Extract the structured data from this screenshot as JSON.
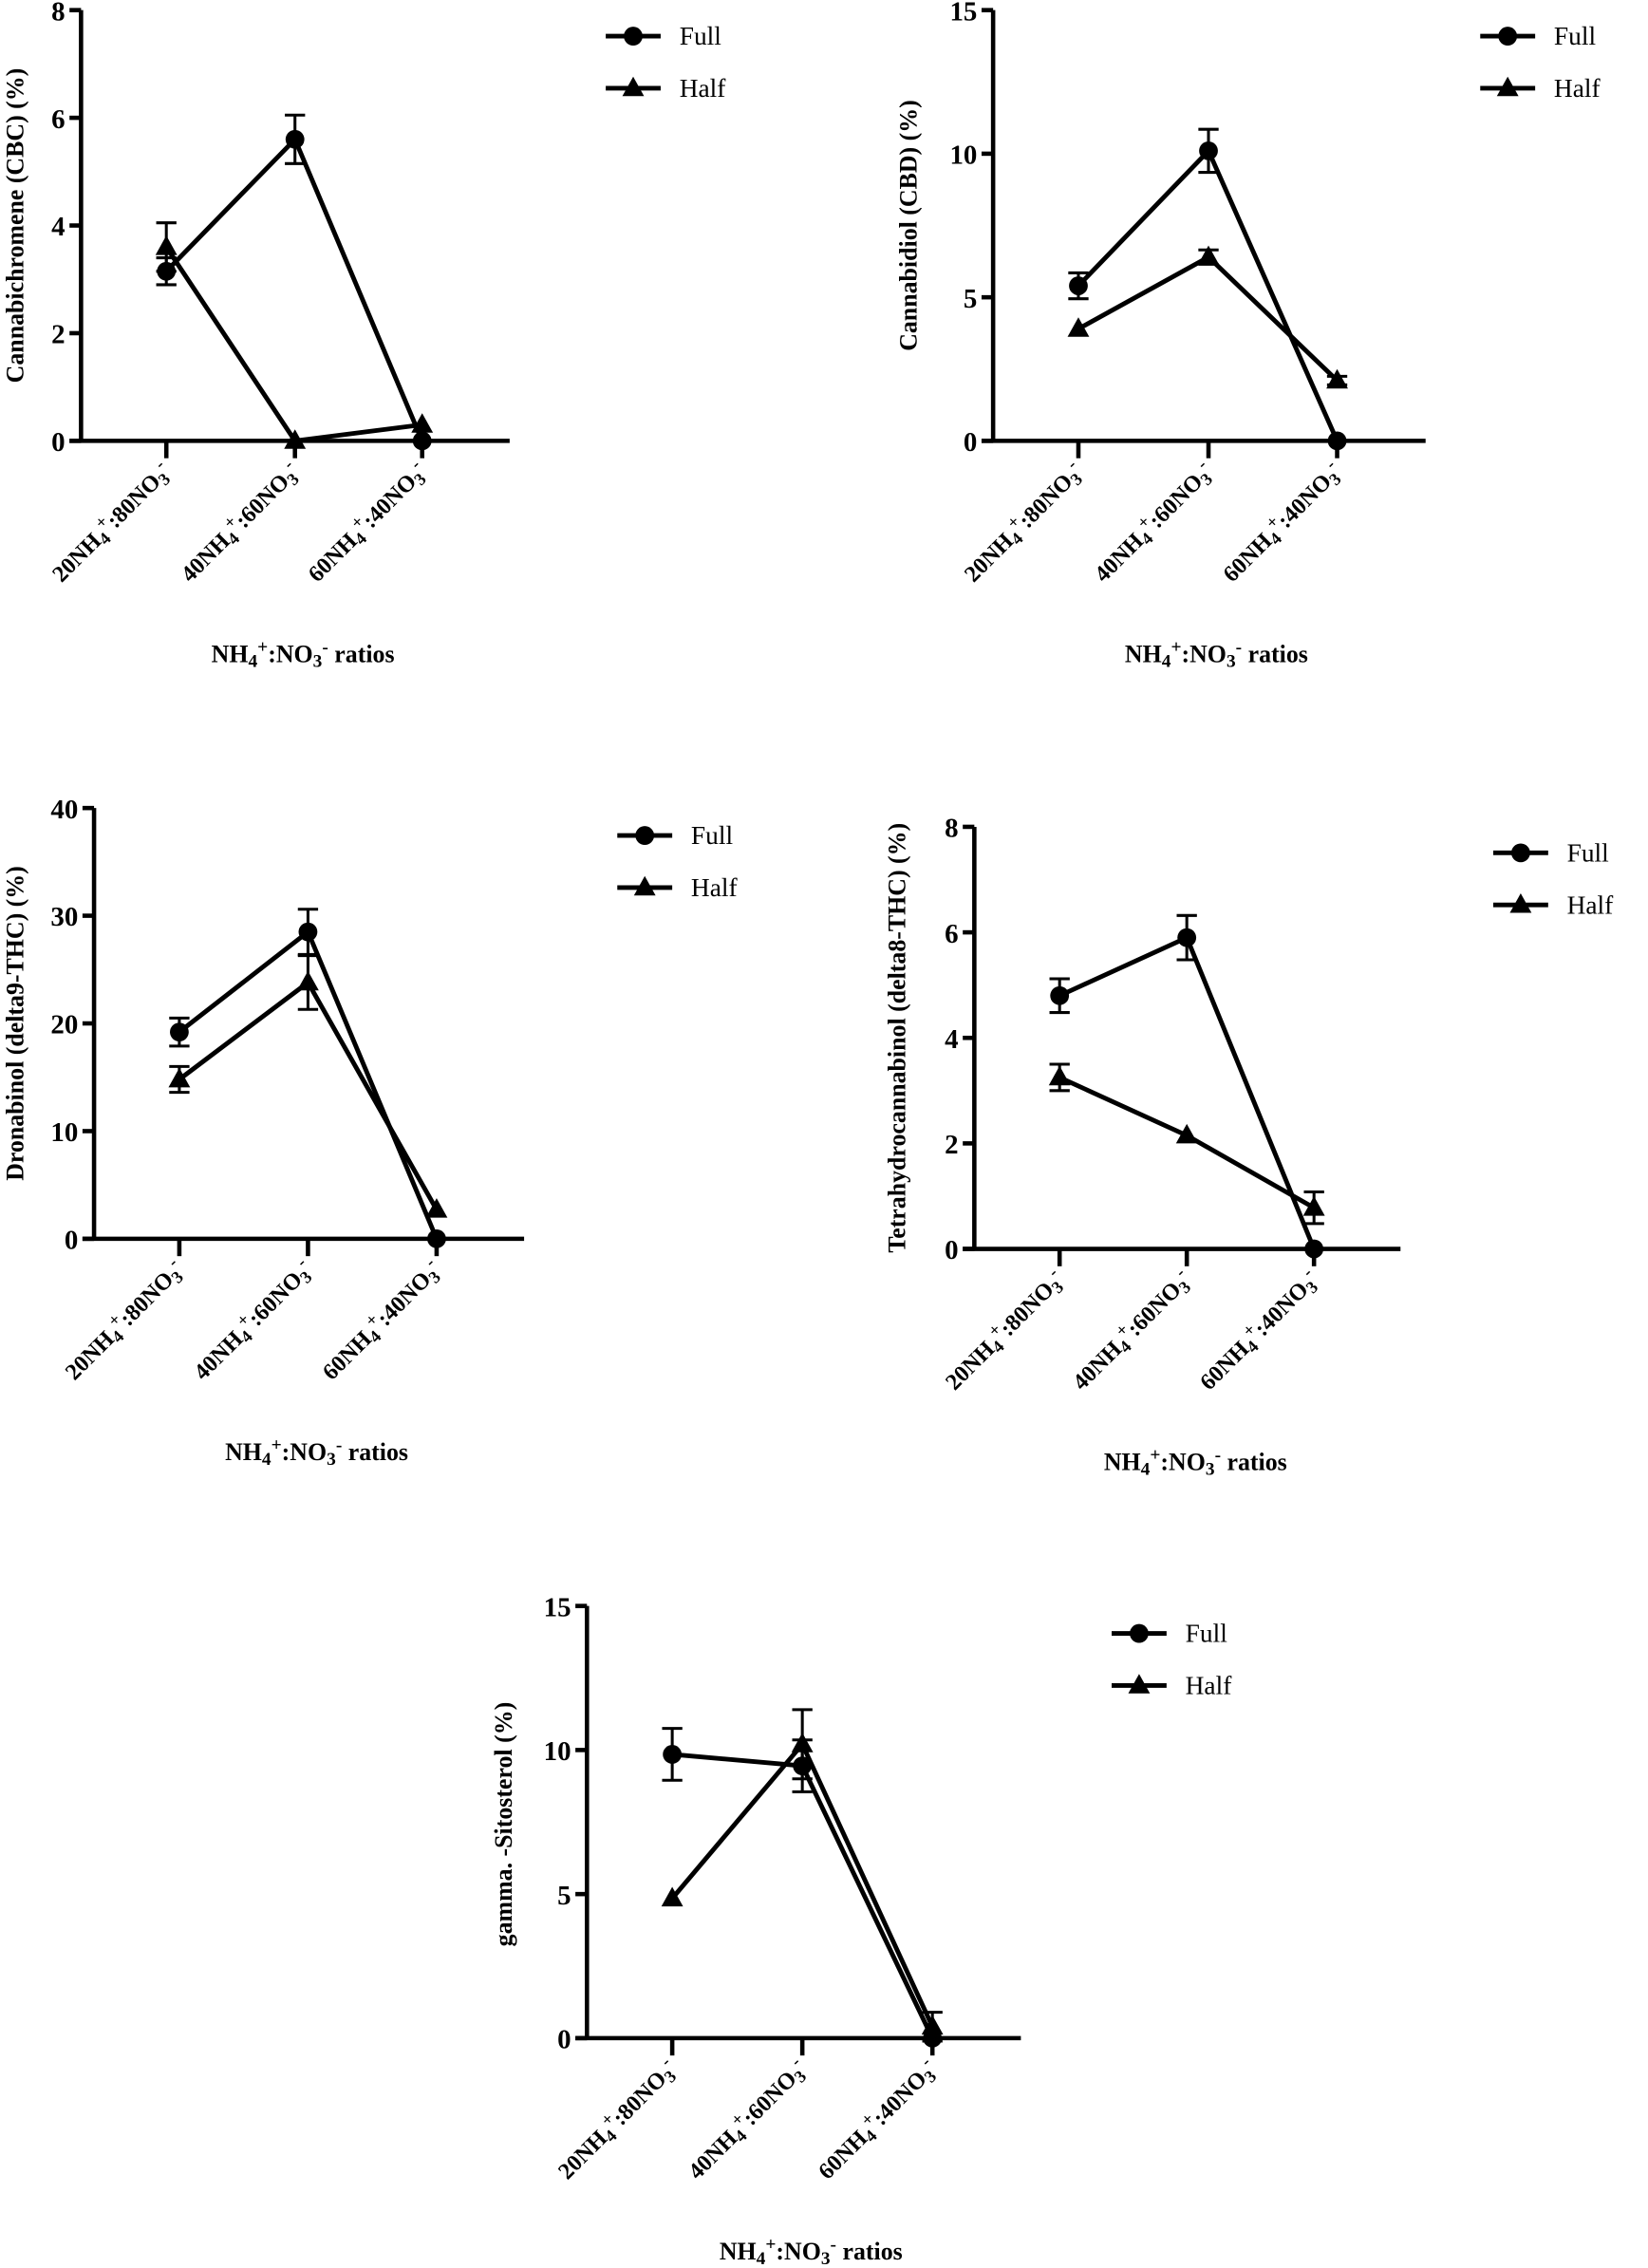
{
  "chart_data": [
    {
      "type": "line",
      "ylabel": "Cannabichromene (CBC) (%)",
      "xlabel": "NH4+:NO3- ratios",
      "categories": [
        "20NH4+:80NO3-",
        "40NH4+:60NO3-",
        "60NH4+:40NO3-"
      ],
      "ylim": [
        0,
        8
      ],
      "yticks": [
        0,
        2,
        4,
        6,
        8
      ],
      "grid": false,
      "legend": "top-right",
      "series": [
        {
          "name": "Full",
          "marker": "circle",
          "values": [
            3.15,
            5.6,
            0
          ],
          "error": [
            0.25,
            0.45,
            0
          ]
        },
        {
          "name": "Half",
          "marker": "triangle",
          "values": [
            3.6,
            0,
            0.3
          ],
          "error": [
            0.45,
            0,
            0
          ]
        }
      ]
    },
    {
      "type": "line",
      "ylabel": "Cannabidiol (CBD) (%)",
      "xlabel": "NH4+:NO3- ratios",
      "categories": [
        "20NH4+:80NO3-",
        "40NH4+:60NO3-",
        "60NH4+:40NO3-"
      ],
      "ylim": [
        0,
        15
      ],
      "yticks": [
        0,
        5,
        10,
        15
      ],
      "grid": false,
      "legend": "top-right",
      "series": [
        {
          "name": "Full",
          "marker": "circle",
          "values": [
            5.4,
            10.1,
            0
          ],
          "error": [
            0.45,
            0.75,
            0
          ]
        },
        {
          "name": "Half",
          "marker": "triangle",
          "values": [
            3.9,
            6.4,
            2.1
          ],
          "error": [
            0,
            0.25,
            0.15
          ]
        }
      ]
    },
    {
      "type": "line",
      "ylabel": "Dronabinol (delta9-THC) (%)",
      "xlabel": "NH4+:NO3- ratios",
      "categories": [
        "20NH4+:80NO3-",
        "40NH4+:60NO3-",
        "60NH4+:40NO3-"
      ],
      "ylim": [
        0,
        40
      ],
      "yticks": [
        0,
        10,
        20,
        30,
        40
      ],
      "grid": false,
      "legend": "top-right",
      "series": [
        {
          "name": "Full",
          "marker": "circle",
          "values": [
            19.2,
            28.5,
            0
          ],
          "error": [
            1.3,
            2.1,
            0
          ]
        },
        {
          "name": "Half",
          "marker": "triangle",
          "values": [
            14.8,
            23.8,
            2.7
          ],
          "error": [
            1.2,
            2.5,
            0
          ]
        }
      ]
    },
    {
      "type": "line",
      "ylabel": "Tetrahydrocannabinol (delta8-THC) (%)",
      "xlabel": "NH4+:NO3- ratios",
      "categories": [
        "20NH4+:80NO3-",
        "40NH4+:60NO3-",
        "60NH4+:40NO3-"
      ],
      "ylim": [
        0,
        8
      ],
      "yticks": [
        0,
        2,
        4,
        6,
        8
      ],
      "grid": false,
      "legend": "top-right",
      "series": [
        {
          "name": "Full",
          "marker": "circle",
          "values": [
            4.8,
            5.9,
            0
          ],
          "error": [
            0.32,
            0.42,
            0
          ]
        },
        {
          "name": "Half",
          "marker": "triangle",
          "values": [
            3.25,
            2.15,
            0.78
          ],
          "error": [
            0.25,
            0,
            0.3
          ]
        }
      ]
    },
    {
      "type": "line",
      "ylabel": "gamma. -Sitosterol (%)",
      "xlabel": "NH4+:NO3- ratios",
      "categories": [
        "20NH4+:80NO3-",
        "40NH4+:60NO3-",
        "60NH4+:40NO3-"
      ],
      "ylim": [
        0,
        15
      ],
      "yticks": [
        0,
        5,
        10,
        15
      ],
      "grid": false,
      "legend": "top-right",
      "series": [
        {
          "name": "Full",
          "marker": "circle",
          "values": [
            9.85,
            9.45,
            0
          ],
          "error": [
            0.9,
            0.9,
            0
          ]
        },
        {
          "name": "Half",
          "marker": "triangle",
          "values": [
            4.85,
            10.2,
            0.4
          ],
          "error": [
            0,
            1.2,
            0.5
          ]
        }
      ]
    }
  ]
}
